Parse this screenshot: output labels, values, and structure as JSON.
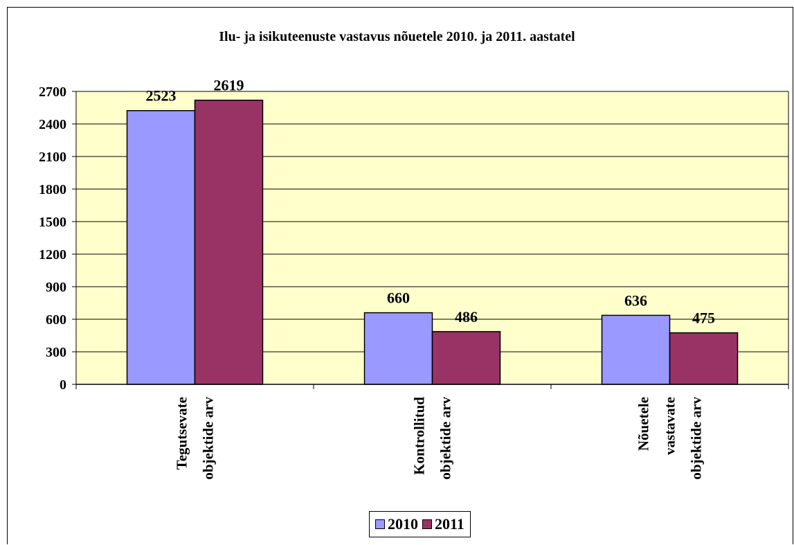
{
  "chart_data": {
    "type": "bar",
    "title": "Ilu- ja isikuteenuste vastavus nõuetele 2010. ja 2011. aastatel",
    "categories": [
      [
        "Tegutsevate",
        "objektide arv"
      ],
      [
        "Kontrollitud",
        "objektide arv"
      ],
      [
        "Nõuetele",
        "vastavate",
        "objektide arv"
      ]
    ],
    "series": [
      {
        "name": "2010",
        "values": [
          2523,
          660,
          636
        ],
        "color": "#9999ff"
      },
      {
        "name": "2011",
        "values": [
          2619,
          486,
          475
        ],
        "color": "#993366"
      }
    ],
    "ylim": [
      0,
      2700
    ],
    "yticks": [
      0,
      300,
      600,
      900,
      1200,
      1500,
      1800,
      2100,
      2400,
      2700
    ],
    "plot_background": "#ffffcc",
    "grid": true,
    "legend_position": "bottom"
  }
}
